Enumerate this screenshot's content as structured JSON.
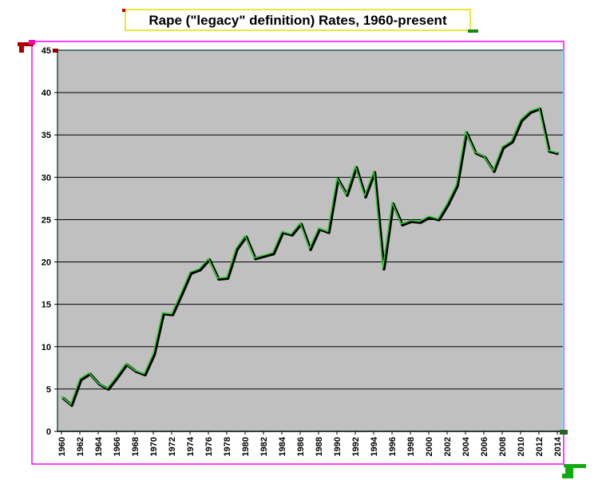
{
  "chart_data": {
    "type": "line",
    "title": "Rape (\"legacy\" definition) Rates, 1960-present",
    "xlabel": "",
    "ylabel": "",
    "ylim": [
      0,
      45
    ],
    "yticks": [
      0,
      5,
      10,
      15,
      20,
      25,
      30,
      35,
      40,
      45
    ],
    "xlim": [
      1960,
      2014
    ],
    "xticks": [
      1960,
      1962,
      1964,
      1966,
      1968,
      1970,
      1972,
      1974,
      1976,
      1978,
      1980,
      1982,
      1984,
      1986,
      1988,
      1990,
      1992,
      1994,
      1996,
      1998,
      2000,
      2002,
      2004,
      2006,
      2008,
      2010,
      2012,
      2014
    ],
    "grid": true,
    "legend": "none",
    "colors": {
      "plot_background": "#c0c0c0",
      "series_shadow": "#000000",
      "series_line": "#33cc33",
      "chart_border": "#ff00ff",
      "plot_border": "#66ffff",
      "title_border": "#e0e000"
    },
    "series": [
      {
        "x": [
          1960,
          1961,
          1962,
          1963,
          1964,
          1965,
          1966,
          1967,
          1968,
          1969,
          1970,
          1971,
          1972,
          1973,
          1974,
          1975,
          1976,
          1977,
          1978,
          1979,
          1980,
          1981,
          1982,
          1983,
          1984,
          1985,
          1986,
          1987,
          1988,
          1989,
          1990,
          1991,
          1992,
          1993,
          1994,
          1995,
          1996,
          1997,
          1998,
          1999,
          2000,
          2001,
          2002,
          2003,
          2004,
          2005,
          2006,
          2007,
          2008,
          2009,
          2010,
          2011,
          2012,
          2013,
          2014
        ],
        "values": [
          4.1,
          3.2,
          6.2,
          6.9,
          5.7,
          5.1,
          6.5,
          8.0,
          7.2,
          6.8,
          9.2,
          14.0,
          13.9,
          16.3,
          18.8,
          19.2,
          20.4,
          18.1,
          18.2,
          21.6,
          23.1,
          20.5,
          20.8,
          21.1,
          23.6,
          23.3,
          24.6,
          21.6,
          24.0,
          23.6,
          29.9,
          28.0,
          31.3,
          27.8,
          30.7,
          19.3,
          27.0,
          24.5,
          24.9,
          24.8,
          25.4,
          25.1,
          26.9,
          29.1,
          35.4,
          33.0,
          32.5,
          30.8,
          33.6,
          34.3,
          36.8,
          37.8,
          38.2,
          33.2,
          32.9
        ]
      }
    ]
  }
}
